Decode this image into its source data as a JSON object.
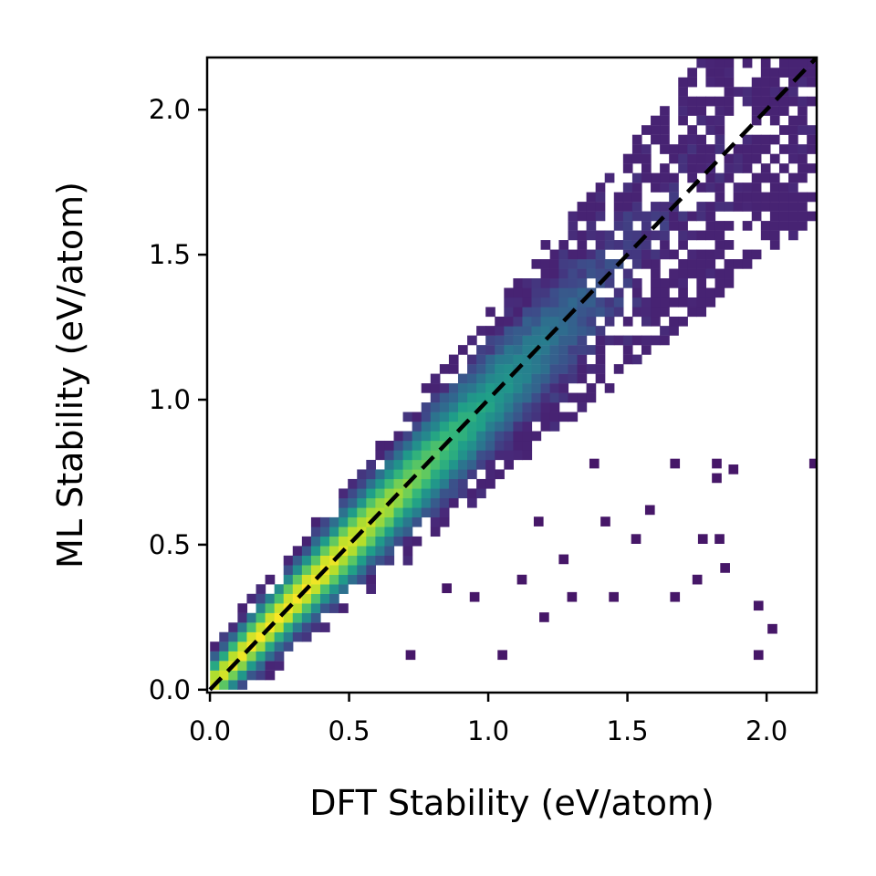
{
  "chart_data": {
    "type": "heatmap",
    "subtype": "2d-histogram",
    "title": "",
    "xlabel": "DFT Stability (eV/atom)",
    "ylabel": "ML Stability (eV/atom)",
    "xlim": [
      -0.01,
      2.18
    ],
    "ylim": [
      -0.01,
      2.18
    ],
    "x_ticks": [
      0.0,
      0.5,
      1.0,
      1.5,
      2.0
    ],
    "y_ticks": [
      0.0,
      0.5,
      1.0,
      1.5,
      2.0
    ],
    "x_tick_labels": [
      "0.0",
      "0.5",
      "1.0",
      "1.5",
      "2.0"
    ],
    "y_tick_labels": [
      "0.0",
      "0.5",
      "1.0",
      "1.5",
      "2.0"
    ],
    "colormap": "viridis",
    "bin_width": 0.033,
    "grid": false,
    "reference_line": {
      "style": "dashed",
      "color": "#000000",
      "x": [
        0.0,
        2.18
      ],
      "y": [
        0.0,
        2.18
      ]
    },
    "bins_note": "each bin: [x_center, y_center, relative_density 0-1]",
    "bins": []
  }
}
